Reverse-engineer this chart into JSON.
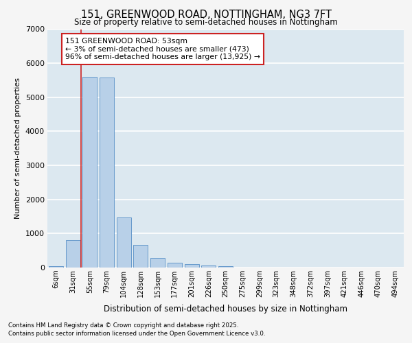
{
  "title1": "151, GREENWOOD ROAD, NOTTINGHAM, NG3 7FT",
  "title2": "Size of property relative to semi-detached houses in Nottingham",
  "xlabel": "Distribution of semi-detached houses by size in Nottingham",
  "ylabel": "Number of semi-detached properties",
  "categories": [
    "6sqm",
    "31sqm",
    "55sqm",
    "79sqm",
    "104sqm",
    "128sqm",
    "153sqm",
    "177sqm",
    "201sqm",
    "226sqm",
    "250sqm",
    "275sqm",
    "299sqm",
    "323sqm",
    "348sqm",
    "372sqm",
    "397sqm",
    "421sqm",
    "446sqm",
    "470sqm",
    "494sqm"
  ],
  "values": [
    50,
    800,
    5600,
    5580,
    1480,
    660,
    290,
    140,
    100,
    70,
    50,
    8,
    4,
    2,
    1,
    1,
    0,
    0,
    0,
    0,
    0
  ],
  "bar_color": "#b8d0e8",
  "bar_edge_color": "#6699cc",
  "annotation_text_line1": "151 GREENWOOD ROAD: 53sqm",
  "annotation_text_line2": "← 3% of semi-detached houses are smaller (473)",
  "annotation_text_line3": "96% of semi-detached houses are larger (13,925) →",
  "ylim": [
    0,
    7000
  ],
  "yticks": [
    0,
    1000,
    2000,
    3000,
    4000,
    5000,
    6000,
    7000
  ],
  "footer_line1": "Contains HM Land Registry data © Crown copyright and database right 2025.",
  "footer_line2": "Contains public sector information licensed under the Open Government Licence v3.0.",
  "bg_color": "#f5f5f5",
  "plot_bg_color": "#dce8f0",
  "grid_color": "#ffffff",
  "red_line_color": "#cc2222",
  "ann_box_edge_color": "#cc2222",
  "red_line_x": 1.5
}
